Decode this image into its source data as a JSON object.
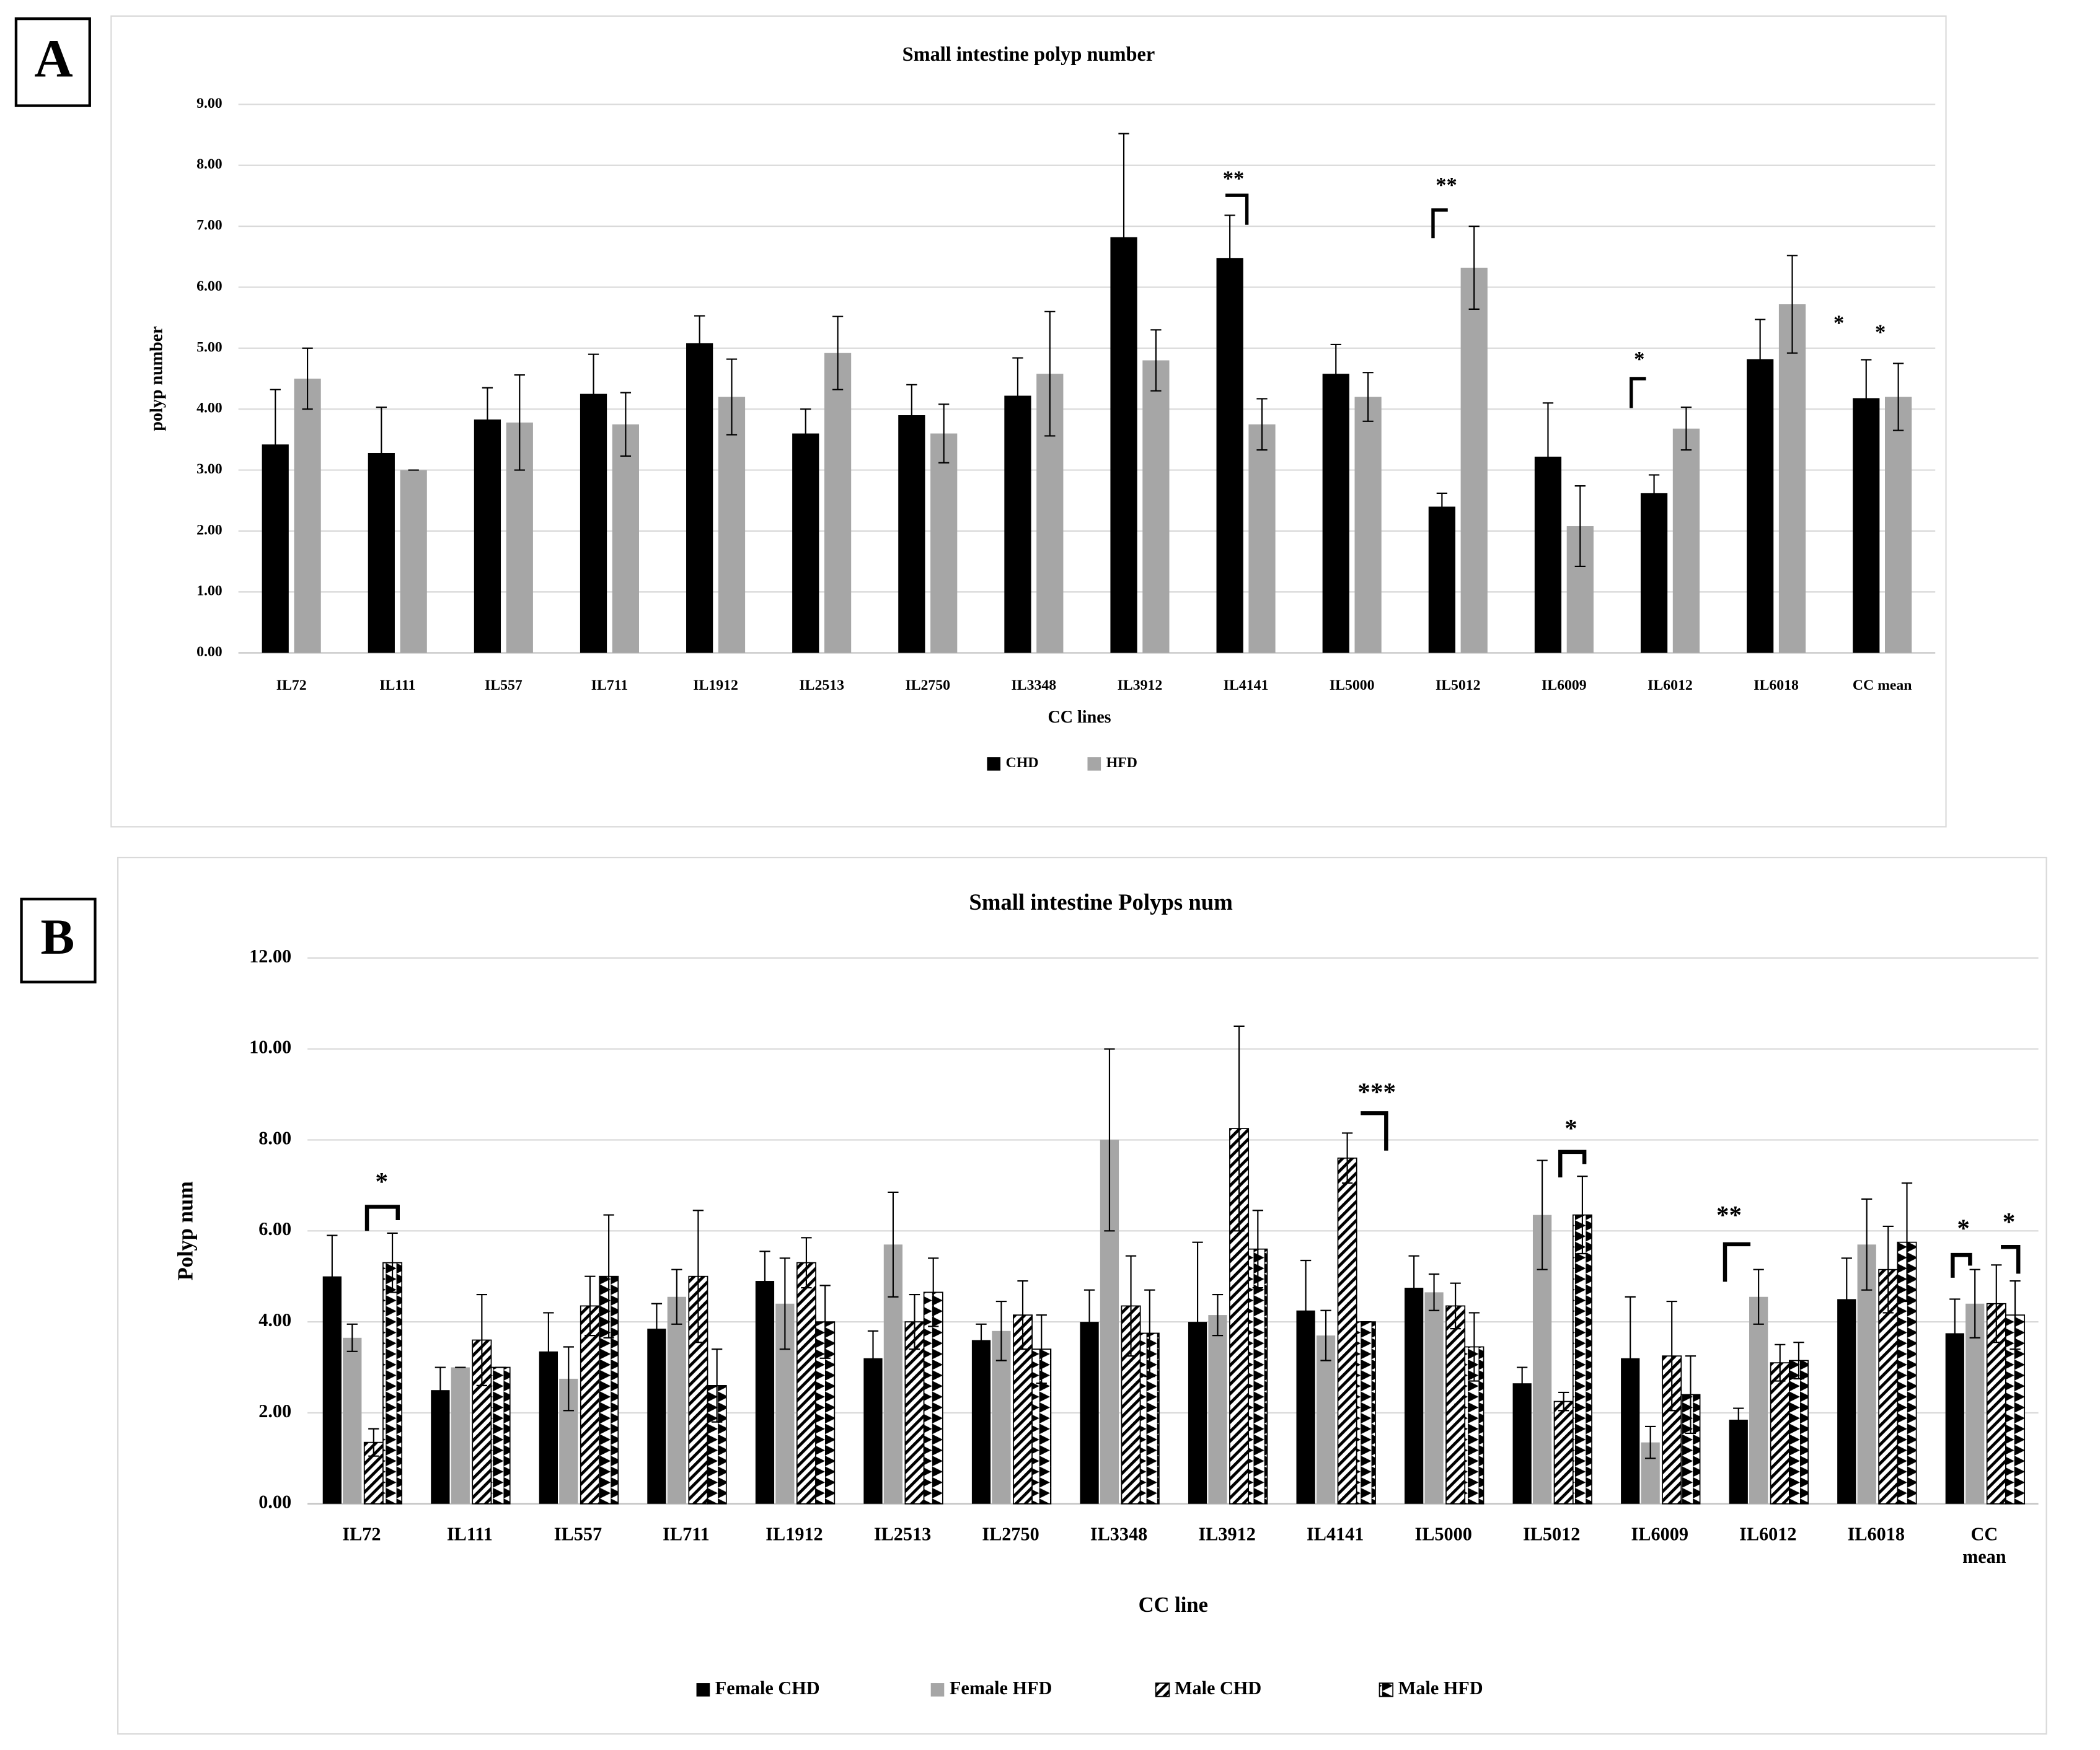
{
  "chart_data": [
    {
      "type": "bar",
      "panel": "A",
      "title": "Small intestine polyp number",
      "x_label": "CC lines",
      "y_label": "polyp number",
      "categories": [
        "IL72",
        "IL111",
        "IL557",
        "IL711",
        "IL1912",
        "IL2513",
        "IL2750",
        "IL3348",
        "IL3912",
        "IL4141",
        "IL5000",
        "IL5012",
        "IL6009",
        "IL6012",
        "IL6018",
        "CC mean"
      ],
      "series": [
        {
          "name": "CHD",
          "color": "#000000",
          "values": [
            3.42,
            3.28,
            3.83,
            4.25,
            5.08,
            3.6,
            3.9,
            4.22,
            6.82,
            6.48,
            4.58,
            2.4,
            3.22,
            2.62,
            4.82,
            4.18
          ],
          "errors": [
            0.9,
            0.75,
            0.52,
            0.65,
            0.45,
            0.4,
            0.5,
            0.62,
            1.7,
            0.7,
            0.48,
            0.22,
            0.88,
            0.3,
            0.65,
            0.63
          ]
        },
        {
          "name": "HFD",
          "color": "#a6a6a6",
          "values": [
            4.5,
            3.0,
            3.78,
            3.75,
            4.2,
            4.92,
            3.6,
            4.58,
            4.8,
            3.75,
            4.2,
            6.32,
            2.08,
            3.68,
            5.72,
            4.2
          ],
          "errors": [
            0.5,
            0,
            0.78,
            0.52,
            0.62,
            0.6,
            0.48,
            1.02,
            0.5,
            0.42,
            0.4,
            0.68,
            0.66,
            0.35,
            0.8,
            0.55
          ]
        }
      ],
      "ylim": [
        0,
        9
      ],
      "yticks": [
        {
          "value": 0,
          "label": "0.00"
        },
        {
          "value": 1,
          "label": "1.00"
        },
        {
          "value": 2,
          "label": "2.00"
        },
        {
          "value": 3,
          "label": "3.00"
        },
        {
          "value": 4,
          "label": "4.00"
        },
        {
          "value": 5,
          "label": "5.00"
        },
        {
          "value": 6,
          "label": "6.00"
        },
        {
          "value": 7,
          "label": "7.00"
        },
        {
          "value": 8,
          "label": "8.00"
        },
        {
          "value": 9,
          "label": "9.00"
        }
      ],
      "grid": true,
      "legend": "bottom",
      "annotations": [
        "**",
        "**",
        "*",
        "*",
        "*"
      ]
    },
    {
      "type": "bar",
      "panel": "B",
      "title": "Small intestine Polyps num",
      "x_label": "CC line",
      "y_label": "Polyp num",
      "categories": [
        "IL72",
        "IL111",
        "IL557",
        "IL711",
        "IL1912",
        "IL2513",
        "IL2750",
        "IL3348",
        "IL3912",
        "IL4141",
        "IL5000",
        "IL5012",
        "IL6009",
        "IL6012",
        "IL6018",
        "CC mean"
      ],
      "series": [
        {
          "name": "Female CHD",
          "color": "#000000",
          "values": [
            5.0,
            2.5,
            3.35,
            3.85,
            4.9,
            3.2,
            3.6,
            4.0,
            4.0,
            4.25,
            4.75,
            2.65,
            3.2,
            1.85,
            4.5,
            3.75
          ],
          "errors": [
            0.9,
            0.5,
            0.85,
            0.55,
            0.65,
            0.6,
            0.35,
            0.7,
            1.75,
            1.1,
            0.7,
            0.35,
            1.35,
            0.25,
            0.9,
            0.75
          ]
        },
        {
          "name": "Female HFD",
          "color": "#a6a6a6",
          "values": [
            3.65,
            3.0,
            2.75,
            4.55,
            4.4,
            5.7,
            3.8,
            8.0,
            4.15,
            3.7,
            4.65,
            6.35,
            1.35,
            4.55,
            5.7,
            4.4
          ],
          "errors": [
            0.3,
            0,
            0.7,
            0.6,
            1.0,
            1.15,
            0.65,
            2.0,
            0.45,
            0.55,
            0.4,
            1.2,
            0.35,
            0.6,
            1.0,
            0.75
          ]
        },
        {
          "name": "Male CHD",
          "color": "#000000",
          "pattern": "diagonal",
          "values": [
            1.35,
            3.6,
            4.35,
            5.0,
            5.3,
            4.0,
            4.15,
            4.35,
            8.25,
            7.6,
            4.35,
            2.25,
            3.25,
            3.1,
            5.15,
            4.4
          ],
          "errors": [
            0.3,
            1.0,
            0.65,
            1.45,
            0.55,
            0.6,
            0.75,
            1.1,
            2.25,
            0.55,
            0.5,
            0.2,
            1.2,
            0.4,
            0.95,
            0.85
          ]
        },
        {
          "name": "Male HFD",
          "color": "#000000",
          "pattern": "zigzag",
          "values": [
            5.3,
            3.0,
            5.0,
            2.6,
            4.0,
            4.65,
            3.4,
            3.75,
            5.6,
            4.0,
            3.45,
            6.35,
            2.4,
            3.15,
            5.75,
            4.15
          ],
          "errors": [
            0.65,
            0,
            1.35,
            0.8,
            0.8,
            0.75,
            0.75,
            0.95,
            0.85,
            0,
            0.75,
            0.85,
            0.85,
            0.4,
            1.3,
            0.75
          ]
        }
      ],
      "ylim": [
        0,
        12
      ],
      "yticks": [
        {
          "value": 0,
          "label": "0.00"
        },
        {
          "value": 2,
          "label": "2.00"
        },
        {
          "value": 4,
          "label": "4.00"
        },
        {
          "value": 6,
          "label": "6.00"
        },
        {
          "value": 8,
          "label": "8.00"
        },
        {
          "value": 10,
          "label": "10.00"
        },
        {
          "value": 12,
          "label": "12.00"
        }
      ],
      "grid": true,
      "legend": "bottom",
      "annotations": [
        "*",
        "***",
        "*",
        "**",
        "*",
        "*"
      ]
    }
  ]
}
